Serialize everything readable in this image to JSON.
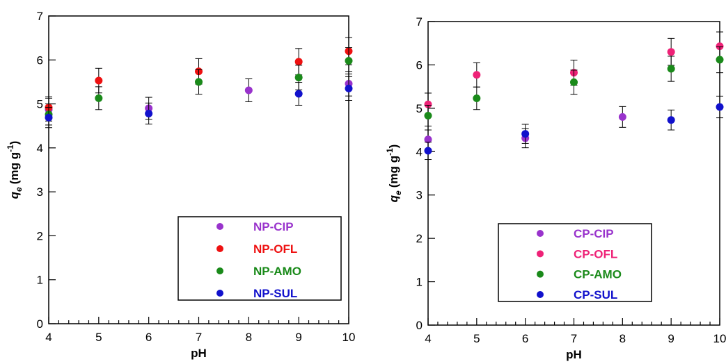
{
  "chart_data": [
    {
      "type": "scatter",
      "title": "",
      "xlabel": "pH",
      "ylabel": {
        "main": "q",
        "sub": "e",
        "units": "(mg g",
        "sup": "-1",
        "close": ")"
      },
      "xlim": [
        4,
        10
      ],
      "ylim": [
        0,
        7
      ],
      "xticks": [
        "4",
        "5",
        "6",
        "7",
        "8",
        "9",
        "10"
      ],
      "yticks": [
        "0",
        "1",
        "2",
        "3",
        "4",
        "5",
        "6",
        "7"
      ],
      "grid": false,
      "legend_position": "bottom-right",
      "series": [
        {
          "name": "NP-CIP",
          "color": "#9933cc",
          "x": [
            4,
            6,
            8,
            10
          ],
          "y": [
            4.87,
            4.9,
            5.31,
            5.46
          ],
          "err": [
            0.26,
            0.25,
            0.26,
            0.28
          ]
        },
        {
          "name": "NP-OFL",
          "color": "#ee1111",
          "x": [
            4,
            5,
            7,
            9,
            10
          ],
          "y": [
            4.92,
            5.53,
            5.74,
            5.96,
            6.2
          ],
          "err": [
            0.24,
            0.28,
            0.29,
            0.3,
            0.31
          ]
        },
        {
          "name": "NP-AMO",
          "color": "#1a8a1a",
          "x": [
            4,
            5,
            7,
            9,
            10
          ],
          "y": [
            4.76,
            5.13,
            5.5,
            5.6,
            5.98
          ],
          "err": [
            0.24,
            0.26,
            0.28,
            0.28,
            0.3
          ]
        },
        {
          "name": "NP-SUL",
          "color": "#1111cc",
          "x": [
            4,
            6,
            9,
            10
          ],
          "y": [
            4.69,
            4.78,
            5.23,
            5.35
          ],
          "err": [
            0.23,
            0.24,
            0.26,
            0.27
          ]
        }
      ]
    },
    {
      "type": "scatter",
      "title": "",
      "xlabel": "pH",
      "ylabel": {
        "main": "q",
        "sub": "e",
        "units": "(mg g",
        "sup": "-1",
        "close": ")"
      },
      "xlim": [
        4,
        10
      ],
      "ylim": [
        0,
        7
      ],
      "xticks": [
        "4",
        "5",
        "6",
        "7",
        "8",
        "9",
        "10"
      ],
      "yticks": [
        "0",
        "1",
        "2",
        "3",
        "4",
        "5",
        "6",
        "7"
      ],
      "grid": false,
      "legend_position": "bottom-right",
      "series": [
        {
          "name": "CP-CIP",
          "color": "#9933cc",
          "x": [
            4,
            6,
            8
          ],
          "y": [
            4.28,
            4.31,
            4.8
          ],
          "err": [
            0.22,
            0.22,
            0.24
          ]
        },
        {
          "name": "CP-OFL",
          "color": "#ee2277",
          "x": [
            4,
            5,
            7,
            9,
            10
          ],
          "y": [
            5.09,
            5.77,
            5.82,
            6.3,
            6.43
          ],
          "err": [
            0.26,
            0.28,
            0.29,
            0.31,
            0.33
          ]
        },
        {
          "name": "CP-AMO",
          "color": "#1a8a1a",
          "x": [
            4,
            5,
            7,
            9,
            10
          ],
          "y": [
            4.83,
            5.23,
            5.6,
            5.91,
            6.12
          ],
          "err": [
            0.24,
            0.26,
            0.28,
            0.29,
            0.3
          ]
        },
        {
          "name": "CP-SUL",
          "color": "#1111cc",
          "x": [
            4,
            6,
            9,
            10
          ],
          "y": [
            4.02,
            4.41,
            4.73,
            5.03
          ],
          "err": [
            0.2,
            0.22,
            0.23,
            0.25
          ]
        }
      ]
    }
  ]
}
